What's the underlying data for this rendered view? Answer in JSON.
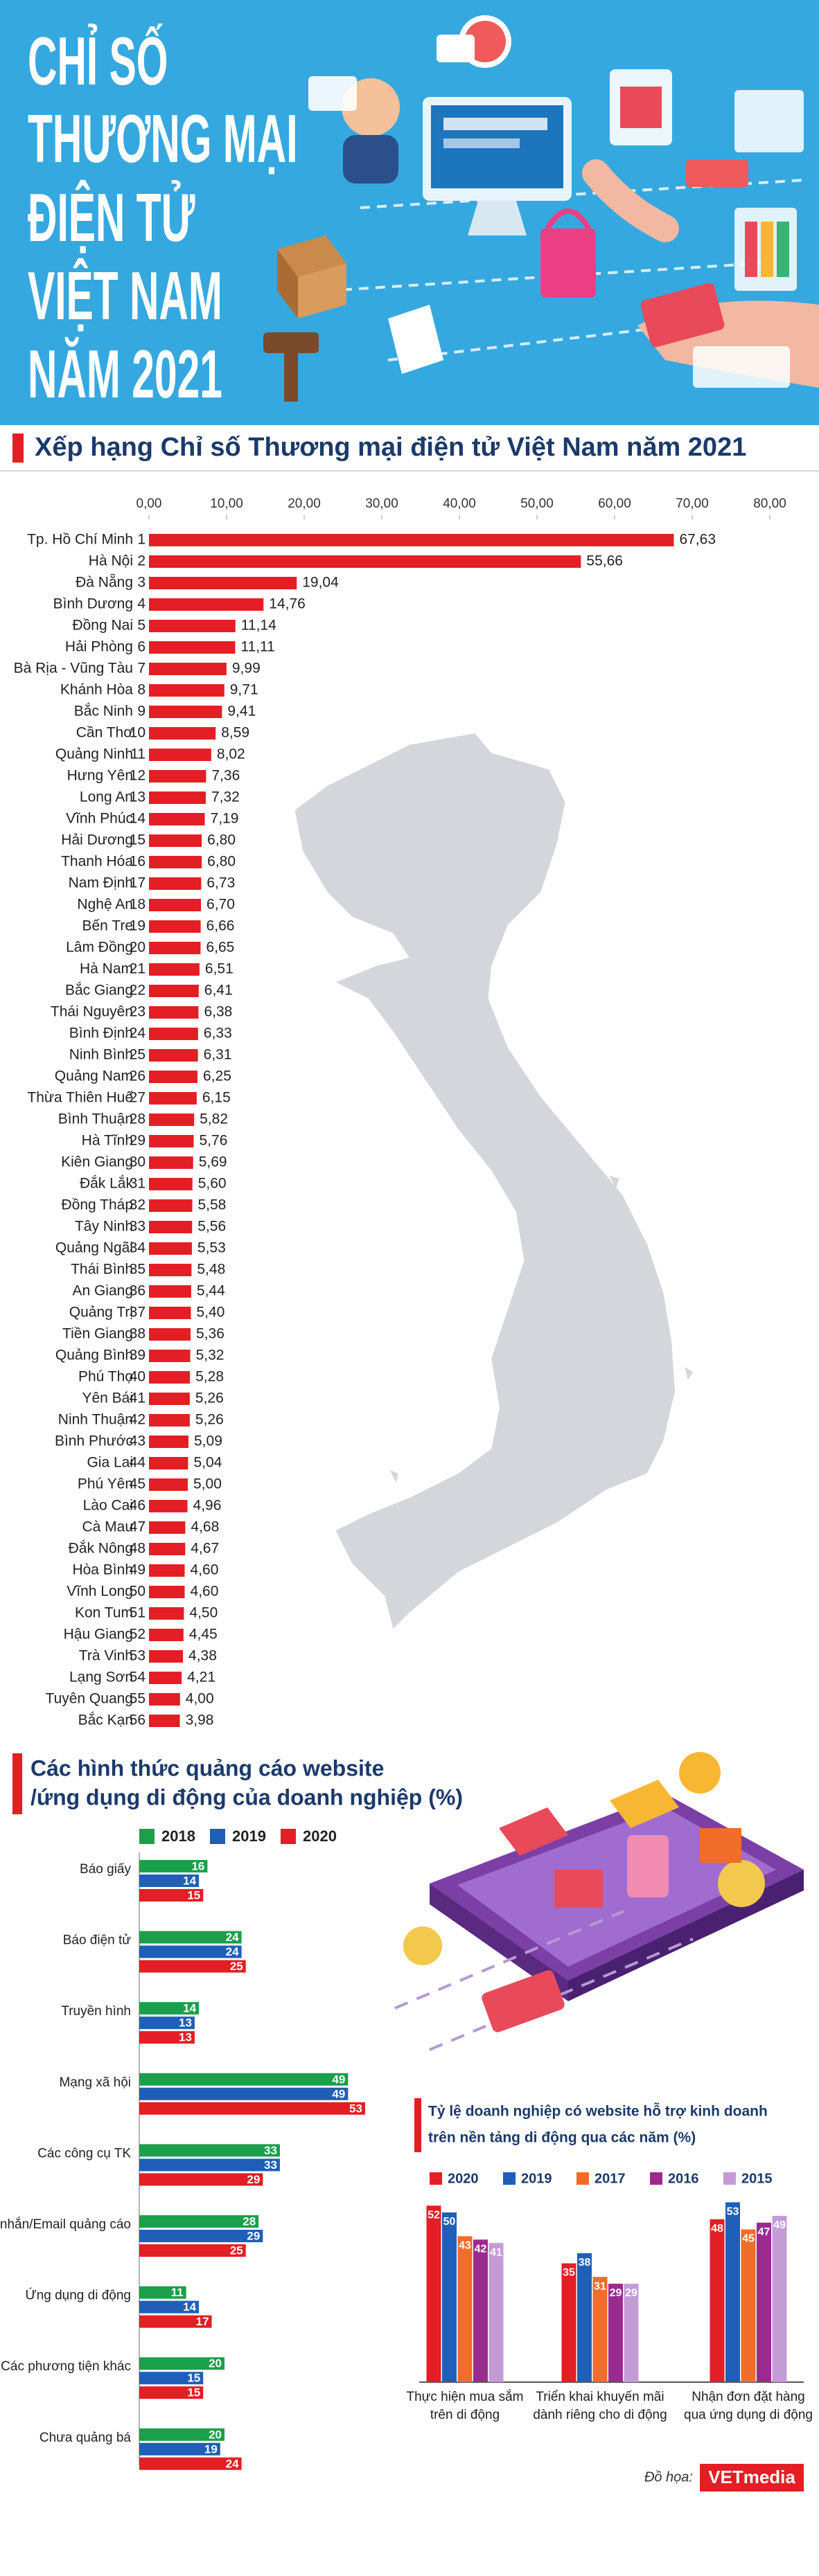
{
  "header": {
    "title": [
      "CHỈ SỐ",
      "THƯƠNG MẠI",
      "ĐIỆN TỬ",
      "VIỆT NAM",
      "NĂM 2021"
    ]
  },
  "chart_data": [
    {
      "type": "hbar",
      "title": "Xếp hạng Chỉ số Thương mại điện tử Việt Nam năm 2021",
      "categories": [
        "Tp. Hồ Chí Minh",
        "Hà Nội",
        "Đà Nẵng",
        "Bình Dương",
        "Đồng Nai",
        "Hải Phòng",
        "Bà Rịa - Vũng Tàu",
        "Khánh Hòa",
        "Bắc Ninh",
        "Cần Thơ",
        "Quảng Ninh",
        "Hưng Yên",
        "Long An",
        "Vĩnh Phúc",
        "Hải Dương",
        "Thanh Hóa",
        "Nam Định",
        "Nghệ An",
        "Bến Tre",
        "Lâm Đồng",
        "Hà Nam",
        "Bắc Giang",
        "Thái Nguyên",
        "Bình Định",
        "Ninh Bình",
        "Quảng Nam",
        "Thừa Thiên Huế",
        "Bình Thuận",
        "Hà Tĩnh",
        "Kiên Giang",
        "Đắk Lắk",
        "Đồng Tháp",
        "Tây Ninh",
        "Quảng Ngãi",
        "Thái Bình",
        "An Giang",
        "Quảng Trị",
        "Tiền Giang",
        "Quảng Bình",
        "Phú Thọ",
        "Yên Bái",
        "Ninh Thuận",
        "Bình Phước",
        "Gia Lai",
        "Phú Yên",
        "Lào Cai",
        "Cà Mau",
        "Đắk Nông",
        "Hòa Bình",
        "Vĩnh Long",
        "Kon Tum",
        "Hậu Giang",
        "Trà Vinh",
        "Lạng Sơn",
        "Tuyên Quang",
        "Bắc Kạn"
      ],
      "ranks": [
        1,
        2,
        3,
        4,
        5,
        6,
        7,
        8,
        9,
        10,
        11,
        12,
        13,
        14,
        15,
        16,
        17,
        18,
        19,
        20,
        21,
        22,
        23,
        24,
        25,
        26,
        27,
        28,
        29,
        30,
        31,
        32,
        33,
        34,
        35,
        36,
        37,
        38,
        39,
        40,
        41,
        42,
        43,
        44,
        45,
        46,
        47,
        48,
        49,
        50,
        51,
        52,
        53,
        54,
        55,
        56
      ],
      "values": [
        67.63,
        55.66,
        19.04,
        14.76,
        11.14,
        11.11,
        9.99,
        9.71,
        9.41,
        8.59,
        8.02,
        7.36,
        7.32,
        7.19,
        6.8,
        6.8,
        6.73,
        6.7,
        6.66,
        6.65,
        6.51,
        6.41,
        6.38,
        6.33,
        6.31,
        6.25,
        6.15,
        5.82,
        5.76,
        5.69,
        5.6,
        5.58,
        5.56,
        5.53,
        5.48,
        5.44,
        5.4,
        5.36,
        5.32,
        5.28,
        5.26,
        5.26,
        5.09,
        5.04,
        5.0,
        4.96,
        4.68,
        4.67,
        4.6,
        4.6,
        4.5,
        4.45,
        4.38,
        4.21,
        4.0,
        3.98
      ],
      "value_labels": [
        "67,63",
        "55,66",
        "19,04",
        "14,76",
        "11,14",
        "11,11",
        "9,99",
        "9,71",
        "9,41",
        "8,59",
        "8,02",
        "7,36",
        "7,32",
        "7,19",
        "6,80",
        "6,80",
        "6,73",
        "6,70",
        "6,66",
        "6,65",
        "6,51",
        "6,41",
        "6,38",
        "6,33",
        "6,31",
        "6,25",
        "6,15",
        "5,82",
        "5,76",
        "5,69",
        "5,60",
        "5,58",
        "5,56",
        "5,53",
        "5,48",
        "5,44",
        "5,40",
        "5,36",
        "5,32",
        "5,28",
        "5,26",
        "5,26",
        "5,09",
        "5,04",
        "5,00",
        "4,96",
        "4,68",
        "4,67",
        "4,60",
        "4,60",
        "4,50",
        "4,45",
        "4,38",
        "4,21",
        "4,00",
        "3,98"
      ],
      "color": "#e31e24",
      "xlim": [
        0,
        80
      ],
      "xticks": [
        {
          "value": 0,
          "label": "0,00"
        },
        {
          "value": 10,
          "label": "10,00"
        },
        {
          "value": 20,
          "label": "20,00"
        },
        {
          "value": 30,
          "label": "30,00"
        },
        {
          "value": 40,
          "label": "40,00"
        },
        {
          "value": 50,
          "label": "50,00"
        },
        {
          "value": 60,
          "label": "60,00"
        },
        {
          "value": 70,
          "label": "70,00"
        },
        {
          "value": 80,
          "label": "80,00"
        }
      ]
    },
    {
      "type": "grouped-hbar",
      "title": [
        "Các hình thức quảng cáo website",
        "/ứng dụng di động của doanh nghiệp (%)"
      ],
      "categories": [
        "Báo giấy",
        "Báo điện tử",
        "Truyền hình",
        "Mạng xã hội",
        "Các công cụ TK",
        "Tin nhắn/Email quảng cáo",
        "Ứng dụng di động",
        "Các phương tiện khác",
        "Chưa quảng bá"
      ],
      "series": [
        {
          "name": "2018",
          "color": "#1aa04a",
          "values": [
            16,
            24,
            14,
            49,
            33,
            28,
            11,
            20,
            20
          ]
        },
        {
          "name": "2019",
          "color": "#1f5fb8",
          "values": [
            14,
            24,
            13,
            49,
            33,
            29,
            14,
            15,
            19
          ]
        },
        {
          "name": "2020",
          "color": "#e31e24",
          "values": [
            15,
            25,
            13,
            53,
            29,
            25,
            17,
            15,
            24
          ]
        }
      ]
    },
    {
      "type": "grouped-vbar",
      "title": [
        "Tỷ lệ doanh nghiệp có website hỗ trợ kinh doanh",
        "trên nền tảng di động qua các năm (%)"
      ],
      "categories": [
        [
          "Thực hiện mua sắm",
          "trên di động"
        ],
        [
          "Triển khai khuyến mãi",
          "dành riêng cho di động"
        ],
        [
          "Nhận đơn đặt hàng",
          "qua ứng dụng di động"
        ]
      ],
      "series": [
        {
          "name": "2020",
          "color": "#e31e24",
          "values": [
            52,
            35,
            48
          ]
        },
        {
          "name": "2019",
          "color": "#1f5fb8",
          "values": [
            50,
            38,
            53
          ]
        },
        {
          "name": "2017",
          "color": "#f26c2a",
          "values": [
            43,
            31,
            45
          ]
        },
        {
          "name": "2016",
          "color": "#9b2a8f",
          "values": [
            42,
            29,
            47
          ]
        },
        {
          "name": "2015",
          "color": "#c59bd6",
          "values": [
            41,
            29,
            49
          ]
        }
      ]
    }
  ],
  "credit": {
    "label": "Đồ họa:",
    "brand": "VETmedia"
  }
}
